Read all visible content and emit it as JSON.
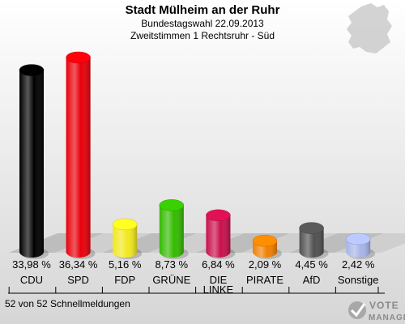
{
  "chart_data": {
    "type": "bar",
    "title": "Stadt Mülheim an der Ruhr",
    "subtitle_1": "Bundestagswahl 22.09.2013",
    "subtitle_2": "Zweitstimmen 1 Rechtsruhr - Süd",
    "categories": [
      "CDU",
      "SPD",
      "FDP",
      "GRÜNE",
      "DIE LINKE",
      "PIRATE",
      "AfD",
      "Sonstige"
    ],
    "category_lines": [
      [
        "CDU"
      ],
      [
        "SPD"
      ],
      [
        "FDP"
      ],
      [
        "GRÜNE"
      ],
      [
        "DIE",
        "LINKE"
      ],
      [
        "PIRATE"
      ],
      [
        "AfD"
      ],
      [
        "Sonstige"
      ]
    ],
    "values": [
      33.98,
      36.34,
      5.16,
      8.73,
      6.84,
      2.09,
      4.45,
      2.42
    ],
    "value_labels": [
      "33,98 %",
      "36,34 %",
      "5,16 %",
      "8,73 %",
      "6,84 %",
      "2,09 %",
      "4,45 %",
      "2,42 %"
    ],
    "colors": [
      "#000000",
      "#e8000b",
      "#f2e81e",
      "#33bb00",
      "#c8104c",
      "#f08000",
      "#505050",
      "#a8b4e8"
    ],
    "ylim": [
      0,
      36.34
    ],
    "grid": false,
    "legend": "none"
  },
  "footer": {
    "reports": "52 von 52 Schnellmeldungen"
  },
  "logo": {
    "line1": "VOTE",
    "line2": "MANAGER"
  }
}
